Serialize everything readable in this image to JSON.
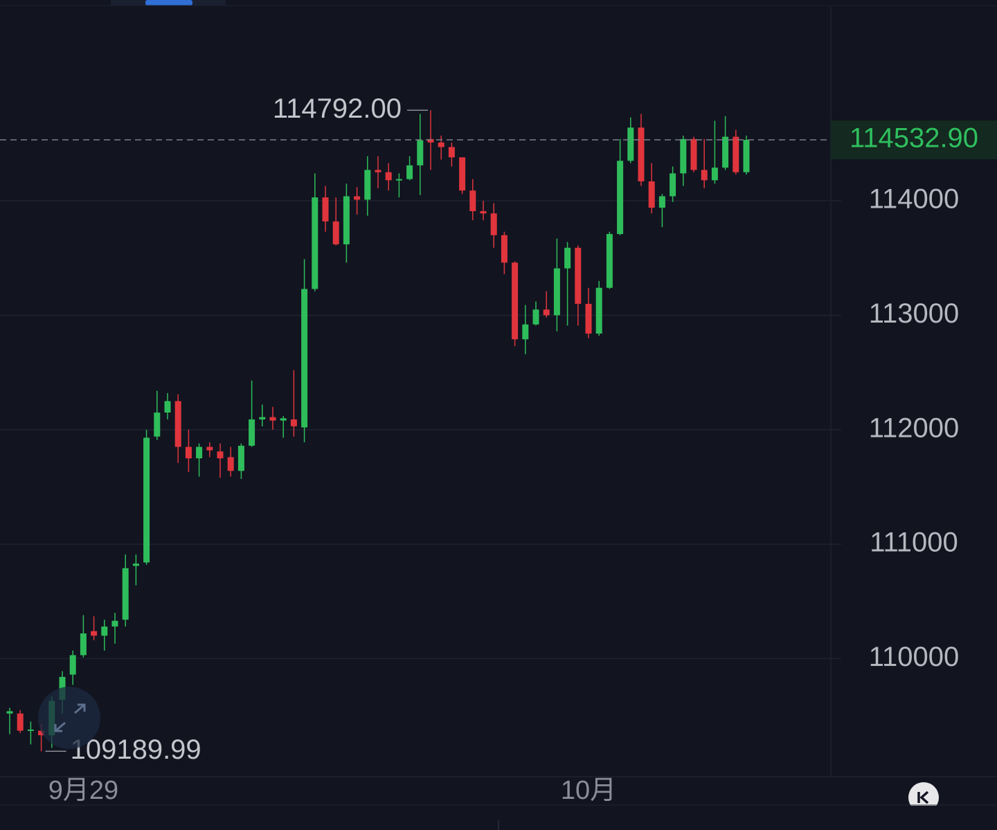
{
  "chart_data": {
    "type": "candlestick",
    "categories": [
      null,
      null,
      null,
      null,
      null,
      null,
      null,
      "9月29",
      null,
      null,
      null,
      null,
      null,
      null,
      null,
      null,
      null,
      null,
      null,
      null,
      null,
      null,
      null,
      null,
      null,
      null,
      null,
      null,
      null,
      null,
      null,
      null,
      null,
      null,
      null,
      null,
      null,
      null,
      null,
      null,
      null,
      null,
      null,
      null,
      null,
      null,
      null,
      null,
      null,
      null,
      null,
      null,
      null,
      null,
      null,
      "10月",
      null,
      null,
      null,
      null,
      null,
      null,
      null,
      null,
      null,
      null,
      null,
      null,
      null,
      null,
      null
    ],
    "open": [
      109520,
      109520,
      109370,
      109370,
      109330,
      109640,
      109860,
      110030,
      110240,
      110200,
      110280,
      110340,
      110810,
      110840,
      111940,
      112150,
      112250,
      111850,
      111750,
      111850,
      111810,
      111760,
      111640,
      111860,
      112090,
      112110,
      112080,
      112090,
      112020,
      113230,
      114030,
      113820,
      113620,
      114040,
      114010,
      114270,
      114250,
      114180,
      114190,
      114310,
      114540,
      114510,
      114470,
      114380,
      114090,
      113910,
      113890,
      113700,
      113460,
      112790,
      112920,
      113050,
      113000,
      113410,
      113590,
      113100,
      112840,
      113240,
      113710,
      114350,
      114640,
      114170,
      113940,
      114040,
      114240,
      114540,
      114270,
      114180,
      114290,
      114560,
      114250
    ],
    "high": [
      109570,
      109550,
      109450,
      109430,
      109670,
      109890,
      110070,
      110380,
      110370,
      110340,
      110400,
      110910,
      110910,
      112000,
      112340,
      112320,
      112310,
      112000,
      111880,
      111890,
      111880,
      111850,
      111880,
      112430,
      112220,
      112200,
      112120,
      112520,
      113490,
      114240,
      114130,
      114030,
      114150,
      114120,
      114390,
      114390,
      114330,
      114240,
      114390,
      114760,
      114792,
      114570,
      114510,
      114380,
      114190,
      114000,
      113980,
      113730,
      113470,
      113090,
      113120,
      113210,
      113670,
      113640,
      113610,
      113240,
      113300,
      113730,
      114540,
      114730,
      114760,
      114330,
      114060,
      114300,
      114570,
      114560,
      114540,
      114700,
      114740,
      114620,
      114570
    ],
    "low": [
      109340,
      109350,
      109250,
      109189.99,
      109220,
      109520,
      109770,
      110010,
      110160,
      110070,
      110130,
      110280,
      110640,
      110820,
      111910,
      112090,
      111710,
      111630,
      111590,
      111760,
      111580,
      111590,
      111570,
      111850,
      112030,
      112000,
      111930,
      111940,
      111890,
      113210,
      113730,
      113610,
      113460,
      113880,
      113870,
      114110,
      114090,
      114030,
      114180,
      114050,
      114270,
      114360,
      114300,
      114060,
      113830,
      113830,
      113590,
      113360,
      112730,
      112660,
      112910,
      112980,
      112860,
      112910,
      112910,
      112800,
      112820,
      113230,
      113700,
      114330,
      114130,
      113890,
      113770,
      113990,
      114130,
      114250,
      114110,
      114150,
      114270,
      114230,
      114230
    ],
    "close": [
      109540,
      109370,
      109380,
      109330,
      109630,
      109840,
      110030,
      110220,
      110200,
      110280,
      110330,
      110790,
      110830,
      111930,
      112150,
      112250,
      111850,
      111750,
      111850,
      111820,
      111750,
      111640,
      111860,
      112090,
      112110,
      112080,
      112100,
      112030,
      113230,
      114030,
      113820,
      113620,
      114040,
      114010,
      114270,
      114250,
      114180,
      114190,
      114310,
      114530,
      114510,
      114470,
      114380,
      114090,
      113910,
      113890,
      113700,
      113460,
      112790,
      112920,
      113050,
      113000,
      113410,
      113590,
      113100,
      112840,
      113240,
      113710,
      114350,
      114640,
      114170,
      113940,
      114040,
      114240,
      114540,
      114270,
      114180,
      114290,
      114560,
      114250,
      114532.9
    ],
    "high_label": "114792.00",
    "low_label": "109189.99",
    "last_label": "114532.90",
    "up_color": "#2ebd5a",
    "down_color": "#e0353d",
    "ylim": [
      108980,
      115755
    ],
    "yticks": [
      110000,
      111000,
      112000,
      113000,
      114000
    ],
    "grid": true
  }
}
